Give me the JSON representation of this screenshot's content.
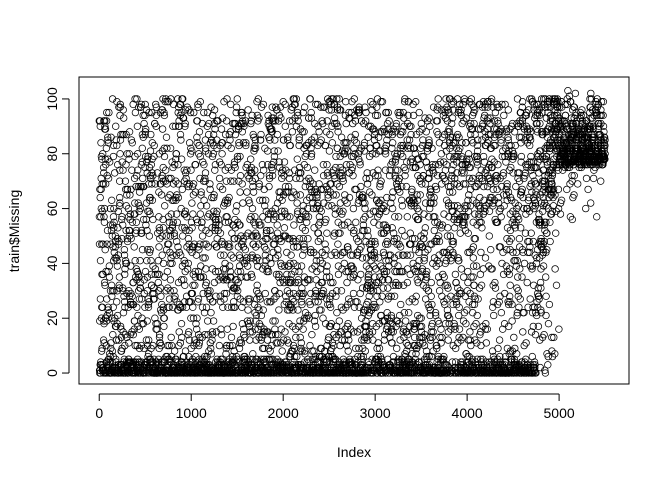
{
  "chart_data": {
    "type": "scatter",
    "title": "",
    "xlabel": "Index",
    "ylabel": "train$Missing",
    "xlim": [
      -220,
      5760
    ],
    "ylim": [
      -4,
      108
    ],
    "x_ticks": [
      0,
      1000,
      2000,
      3000,
      4000,
      5000
    ],
    "y_ticks": [
      0,
      20,
      40,
      60,
      80,
      100
    ],
    "x_tick_labels": [
      "0",
      "1000",
      "2000",
      "3000",
      "4000",
      "5000"
    ],
    "y_tick_labels": [
      "0",
      "20",
      "40",
      "60",
      "80",
      "100"
    ],
    "marker": "open-circle",
    "marker_color": "#000000",
    "n_points": 5500,
    "description_of_pattern": [
      {
        "x_range": [
          0,
          4750
        ],
        "y_range": [
          0,
          8
        ],
        "density": "very high (dense band near zero)"
      },
      {
        "x_range": [
          0,
          4750
        ],
        "y_range": [
          8,
          102
        ],
        "density": "uniform scatter"
      },
      {
        "x_range": [
          3750,
          4750
        ],
        "y_range": [
          0,
          102
        ],
        "density": "slightly sparser, more values above 60"
      },
      {
        "x_range": [
          4750,
          5000
        ],
        "y_range": [
          20,
          100
        ],
        "density": "rising diagonal band"
      },
      {
        "x_range": [
          5000,
          5550
        ],
        "y_range": [
          75,
          104
        ],
        "density": "very dense cluster"
      }
    ]
  }
}
